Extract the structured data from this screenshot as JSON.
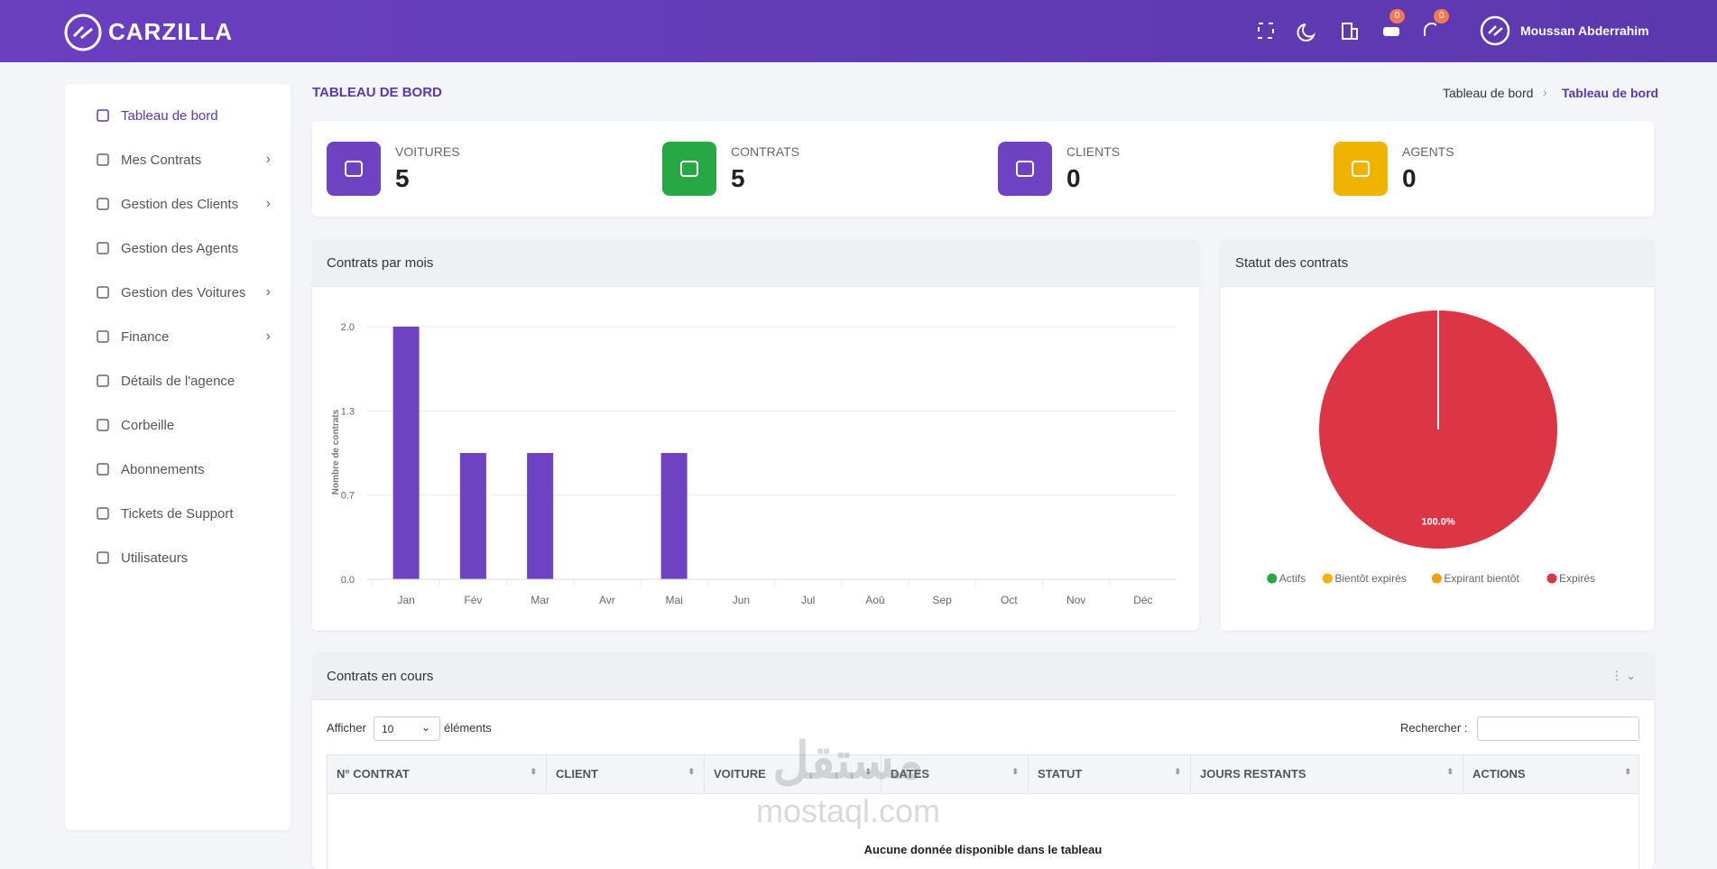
{
  "header": {
    "brand": "CARZILLA",
    "badges": [
      "0",
      "0"
    ],
    "user": "Moussan Abderrahim"
  },
  "sidebar": [
    "Tableau de bord",
    "Mes Contrats",
    "Gestion des Clients",
    "Gestion des Agents",
    "Gestion des Voitures",
    "Finance",
    "Détails de l'agence",
    "Corbeille",
    "Abonnements",
    "Tickets de Support",
    "Utilisateurs"
  ],
  "page": {
    "title": "TABLEAU DE BORD",
    "breadcrumb": [
      "Tableau de bord",
      "Tableau de bord"
    ]
  },
  "stats": [
    {
      "label": "VOITURES",
      "value": 5,
      "color": "#6f42c1"
    },
    {
      "label": "CONTRATS",
      "value": 5,
      "color": "#28a745"
    },
    {
      "label": "CLIENTS",
      "value": 0,
      "color": "#6f42c1"
    },
    {
      "label": "AGENTS",
      "value": 0,
      "color": "#f0b400"
    }
  ],
  "chart_data": [
    {
      "type": "bar",
      "title": "Contrats par mois",
      "y_label": "Nombre de contrats",
      "categories": [
        "Jan",
        "Fév",
        "Mar",
        "Avr",
        "Mai",
        "Jun",
        "Jul",
        "Aoû",
        "Sep",
        "Oct",
        "Nov",
        "Déc"
      ],
      "values": [
        2,
        1,
        1,
        0,
        1,
        0,
        0,
        0,
        0,
        0,
        0,
        0
      ],
      "color": "#6f42c1",
      "ylim": [
        0,
        2
      ],
      "yticks": [
        {
          "value": 0,
          "label": "0.0"
        },
        {
          "value": 0.667,
          "label": "0.7"
        },
        {
          "value": 1.333,
          "label": "1.3"
        },
        {
          "value": 2,
          "label": "2.0"
        }
      ],
      "grid": true
    },
    {
      "type": "pie",
      "title": "Statut des contrats",
      "categories": [
        "Actifs",
        "Bientôt expirés",
        "Expirant bientôt",
        "Expirés"
      ],
      "values": [
        0,
        0,
        0,
        100
      ],
      "value_labels": [
        null,
        null,
        null,
        "100.0%"
      ],
      "colors": [
        "#28a745",
        "#f0b400",
        "#f39c12",
        "#dc3545"
      ],
      "legend": "bottom"
    }
  ],
  "table": {
    "title": "Contrats en cours",
    "show_prefix": "Afficher",
    "show_value": "10",
    "show_suffix": "éléments",
    "search_label": "Rechercher :",
    "columns": [
      "N° CONTRAT",
      "CLIENT",
      "VOITURE",
      "DATES",
      "STATUT",
      "JOURS RESTANTS",
      "ACTIONS"
    ],
    "empty": "Aucune donnée disponible dans le tableau"
  },
  "watermark": [
    "مستقل",
    "mostaql.com"
  ]
}
